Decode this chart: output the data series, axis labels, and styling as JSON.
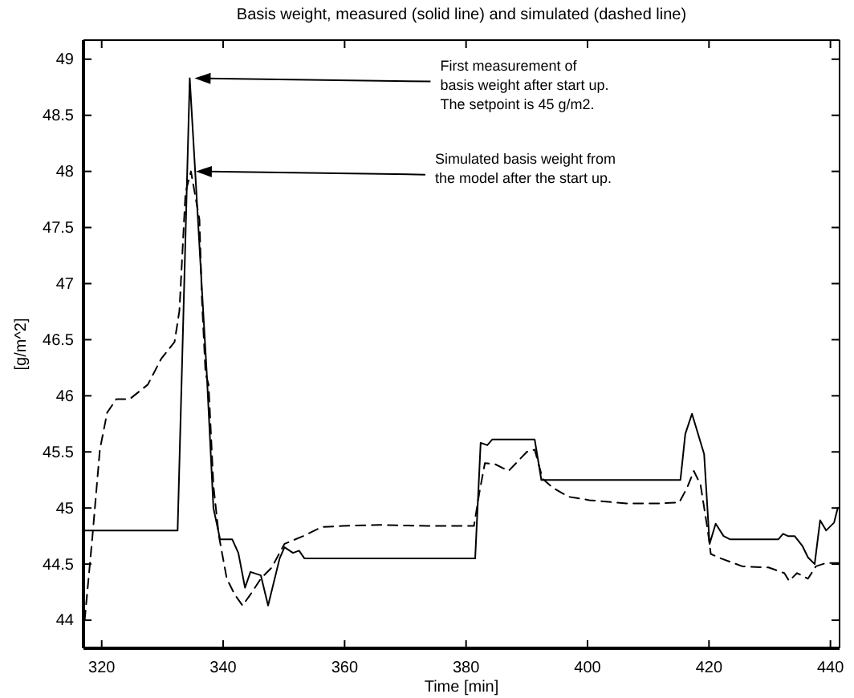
{
  "chart_data": {
    "type": "line",
    "title": "Basis weight, measured (solid line) and simulated (dashed line)",
    "xlabel": "Time [min]",
    "ylabel": "[g/m^2]",
    "xlim": [
      317,
      441.5
    ],
    "xticks": [
      320,
      340,
      360,
      380,
      400,
      420,
      440
    ],
    "ylim": [
      43.75,
      49.17
    ],
    "yticks": [
      44,
      44.5,
      45,
      45.5,
      46,
      46.5,
      47,
      47.5,
      48,
      48.5,
      49
    ],
    "grid": false,
    "series": [
      {
        "color": "#000000",
        "line_style": "solid",
        "x": [
          317,
          332.5,
          334.5,
          335.5,
          337.3,
          338.4,
          339.5,
          341.5,
          342.5,
          343.6,
          344.5,
          346.2,
          347.4,
          349.3,
          350.1,
          351.5,
          352.5,
          353.4,
          381.5,
          382.4,
          383.5,
          384.3,
          391.3,
          392.4,
          415.3,
          416.1,
          417.2,
          419.2,
          420.1,
          421.1,
          422.4,
          423.5,
          431.4,
          432.2,
          433,
          434.1,
          435.4,
          436.3,
          437.4,
          438.3,
          439.3,
          440.6,
          441.2
        ],
        "values": [
          44.8,
          44.8,
          48.83,
          47.9,
          46.2,
          45,
          44.72,
          44.72,
          44.6,
          44.29,
          44.43,
          44.4,
          44.13,
          44.55,
          44.65,
          44.6,
          44.62,
          44.55,
          44.55,
          45.58,
          45.56,
          45.61,
          45.61,
          45.25,
          45.25,
          45.66,
          45.84,
          45.48,
          44.68,
          44.86,
          44.75,
          44.72,
          44.72,
          44.77,
          44.75,
          44.75,
          44.66,
          44.56,
          44.5,
          44.89,
          44.8,
          44.87,
          45
        ]
      },
      {
        "color": "#000000",
        "line_style": "dashed",
        "x": [
          317.2,
          318.5,
          319.7,
          320.9,
          322.4,
          324.6,
          327.6,
          329.8,
          332,
          332.8,
          333.8,
          334.7,
          336.1,
          336.5,
          337.1,
          337.6,
          338.4,
          339.3,
          340.6,
          341.9,
          343.2,
          344.5,
          346.2,
          348,
          350.1,
          353.2,
          356.2,
          359.7,
          365.7,
          373.5,
          381.3,
          382.2,
          383.1,
          384.8,
          387,
          390,
          391.3,
          392.6,
          394.3,
          396.9,
          400.3,
          406.4,
          411.6,
          415.1,
          416.4,
          417.5,
          418.6,
          419.8,
          420.3,
          422,
          425.5,
          429.8,
          432.4,
          433.2,
          434.5,
          436.3,
          437.6,
          439.3,
          441.5
        ],
        "values": [
          44,
          44.76,
          45.52,
          45.85,
          45.97,
          45.97,
          46.1,
          46.33,
          46.48,
          46.76,
          47.81,
          48,
          47.57,
          46.86,
          46.2,
          46.1,
          45.2,
          44.75,
          44.37,
          44.23,
          44.13,
          44.23,
          44.37,
          44.47,
          44.68,
          44.75,
          44.83,
          44.84,
          44.85,
          44.84,
          44.84,
          45.14,
          45.4,
          45.39,
          45.33,
          45.5,
          45.52,
          45.26,
          45.18,
          45.1,
          45.07,
          45.04,
          45.04,
          45.05,
          45.18,
          45.33,
          45.21,
          44.8,
          44.59,
          44.55,
          44.48,
          44.47,
          44.42,
          44.35,
          44.42,
          44.37,
          44.48,
          44.51,
          44.51
        ]
      }
    ],
    "annotations": [
      "First measurement of\nbasis weight after start up.\nThe setpoint is 45 g/m2.",
      "Simulated basis weight from\nthe model after the start up."
    ]
  }
}
